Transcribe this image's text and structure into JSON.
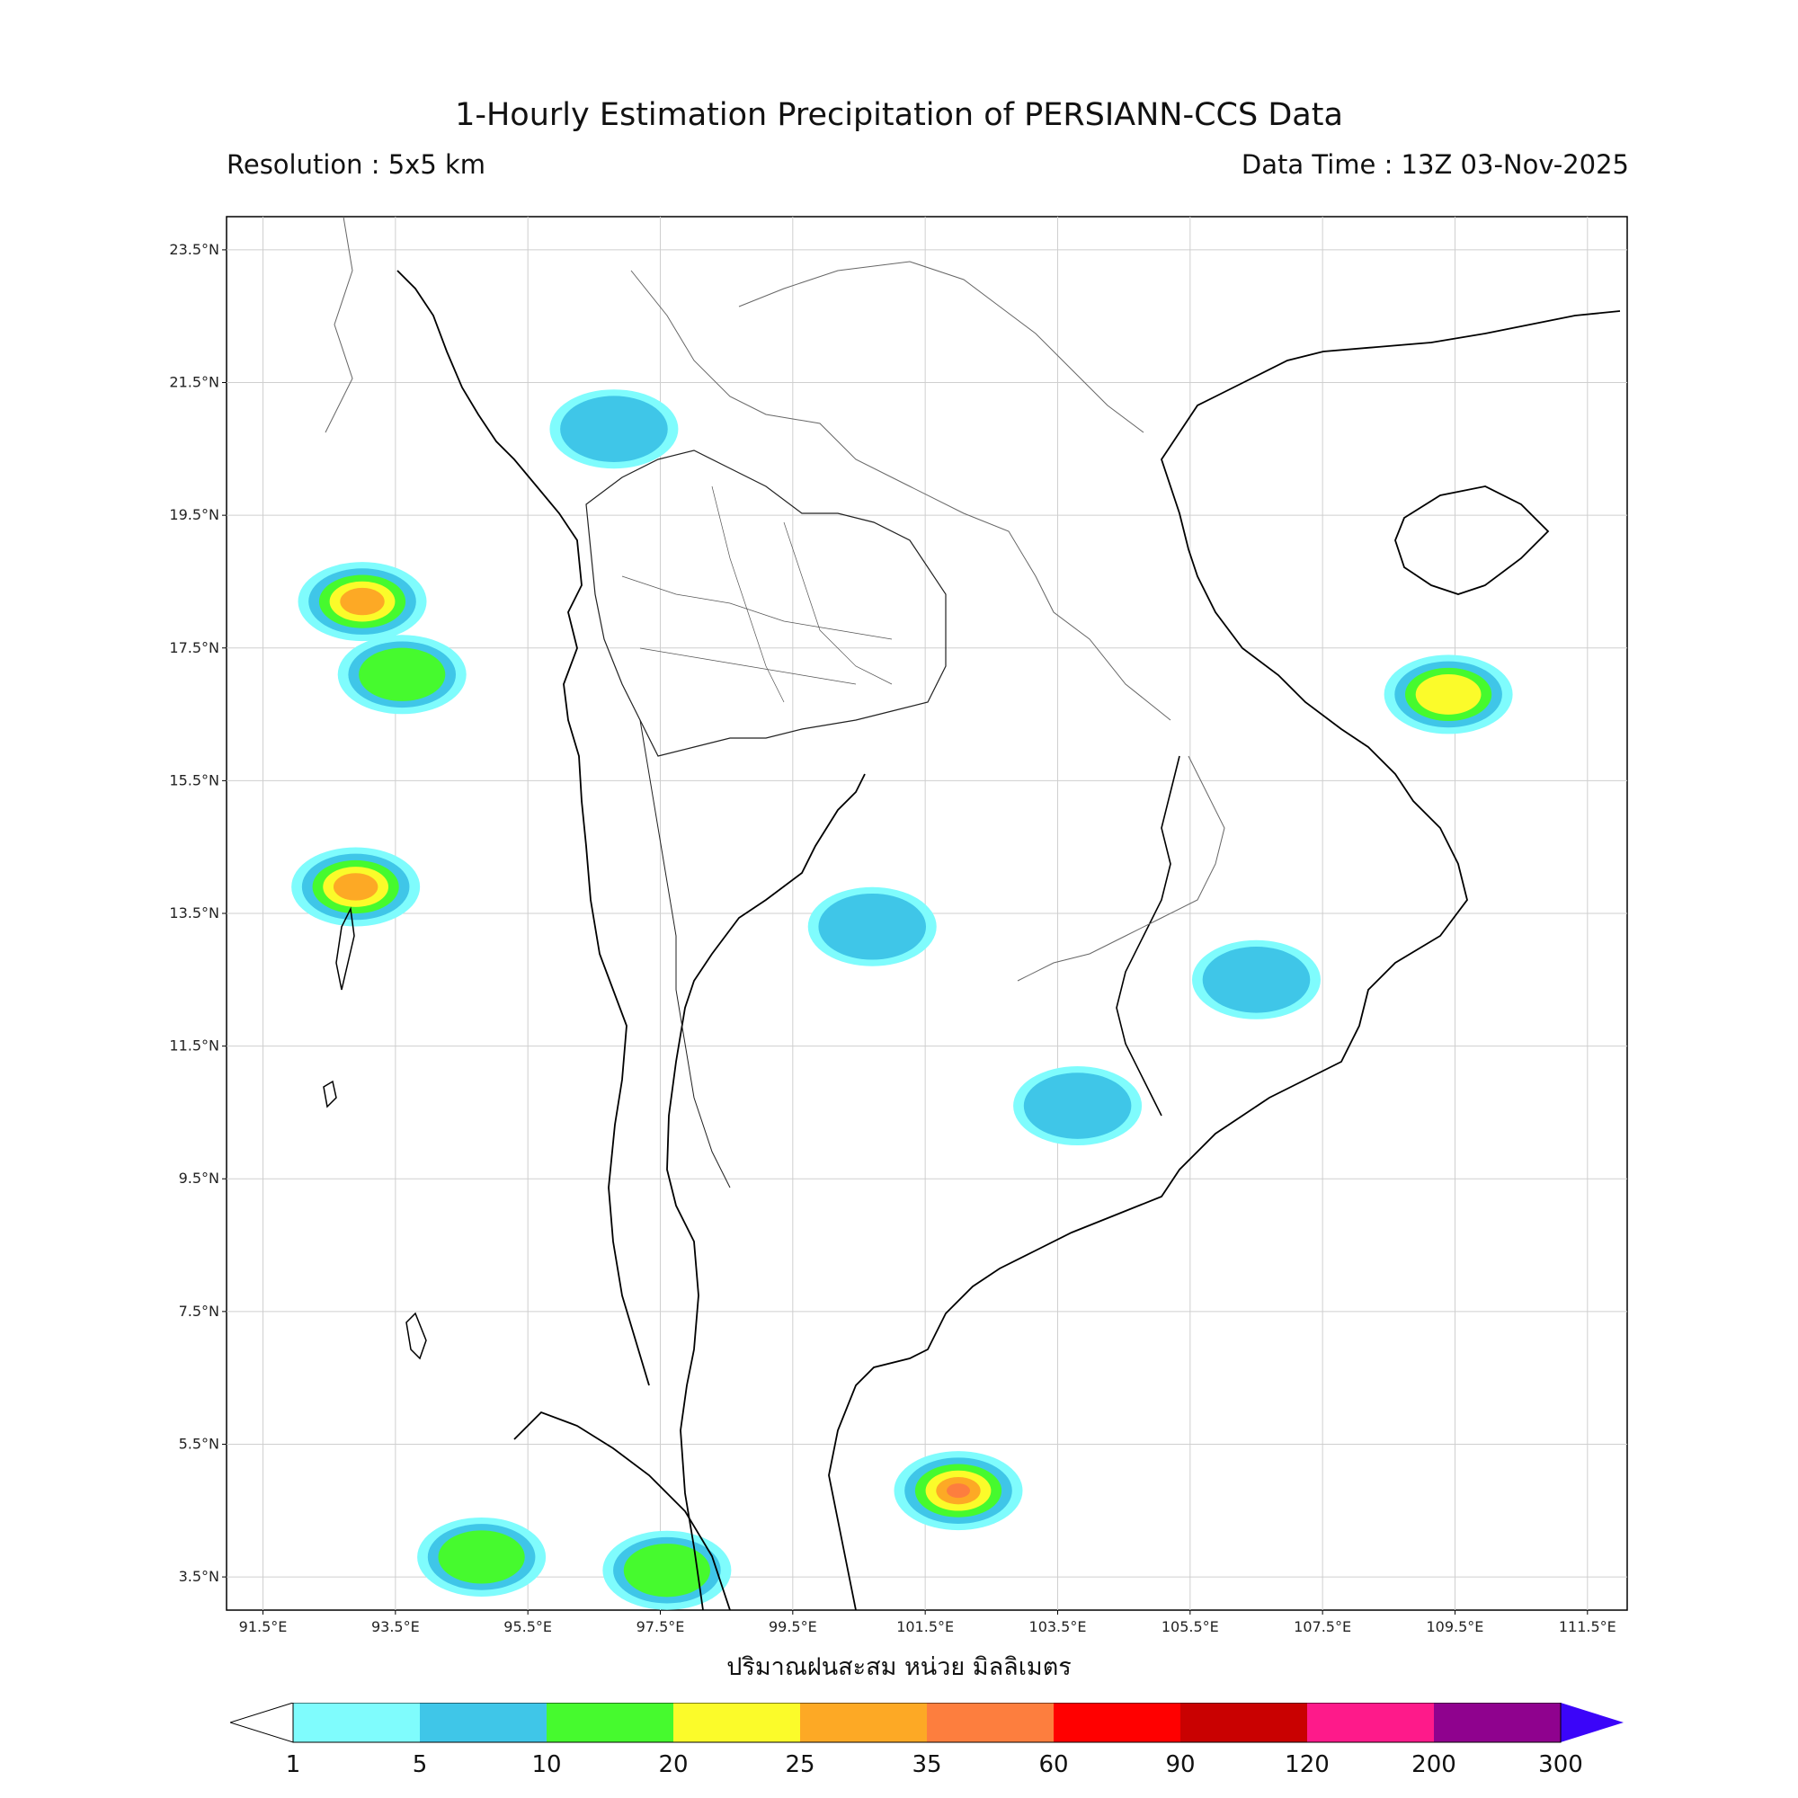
{
  "header": {
    "title": "1-Hourly Estimation Precipitation of PERSIANN-CCS Data",
    "resolution": "Resolution : 5x5 km",
    "data_time": "Data Time : 13Z 03-Nov-2025"
  },
  "axes": {
    "lat_labels": [
      "23.5°N",
      "21.5°N",
      "19.5°N",
      "17.5°N",
      "15.5°N",
      "13.5°N",
      "11.5°N",
      "9.5°N",
      "7.5°N",
      "5.5°N",
      "3.5°N"
    ],
    "lon_labels": [
      "91.5°E",
      "93.5°E",
      "95.5°E",
      "97.5°E",
      "99.5°E",
      "101.5°E",
      "103.5°E",
      "105.5°E",
      "107.5°E",
      "109.5°E",
      "111.5°E"
    ],
    "lat_values": [
      23.5,
      21.5,
      19.5,
      17.5,
      15.5,
      13.5,
      11.5,
      9.5,
      7.5,
      5.5,
      3.5
    ],
    "lon_values": [
      91.5,
      93.5,
      95.5,
      97.5,
      99.5,
      101.5,
      103.5,
      105.5,
      107.5,
      109.5,
      111.5
    ],
    "extent": {
      "lon_min": 90.95,
      "lon_max": 112.1,
      "lat_min": 3.0,
      "lat_max": 24.0
    },
    "xlabel": "ปริมาณฝนสะสม หน่วย มิลลิเมตร"
  },
  "colorbar": {
    "labels": [
      "1",
      "5",
      "10",
      "20",
      "25",
      "35",
      "60",
      "90",
      "120",
      "200",
      "300"
    ],
    "colors": [
      "#7ffcfd",
      "#3fc6e8",
      "#46fa2e",
      "#fbfb2a",
      "#fda925",
      "#fd7e3e",
      "#ff0000",
      "#c90101",
      "#fe1a8a",
      "#8f028e",
      "#3b05f9"
    ]
  },
  "rain_cells": [
    {
      "lon": 96.8,
      "lat": 20.8,
      "level": 1
    },
    {
      "lon": 93.0,
      "lat": 18.2,
      "level": 4
    },
    {
      "lon": 93.6,
      "lat": 17.1,
      "level": 2
    },
    {
      "lon": 92.9,
      "lat": 13.9,
      "level": 4
    },
    {
      "lon": 97.6,
      "lat": 3.6,
      "level": 2
    },
    {
      "lon": 94.8,
      "lat": 3.8,
      "level": 2
    },
    {
      "lon": 102.0,
      "lat": 4.8,
      "level": 5
    },
    {
      "lon": 106.5,
      "lat": 12.5,
      "level": 1
    },
    {
      "lon": 103.8,
      "lat": 10.6,
      "level": 1
    },
    {
      "lon": 109.4,
      "lat": 16.8,
      "level": 3
    },
    {
      "lon": 100.7,
      "lat": 13.3,
      "level": 1
    }
  ]
}
